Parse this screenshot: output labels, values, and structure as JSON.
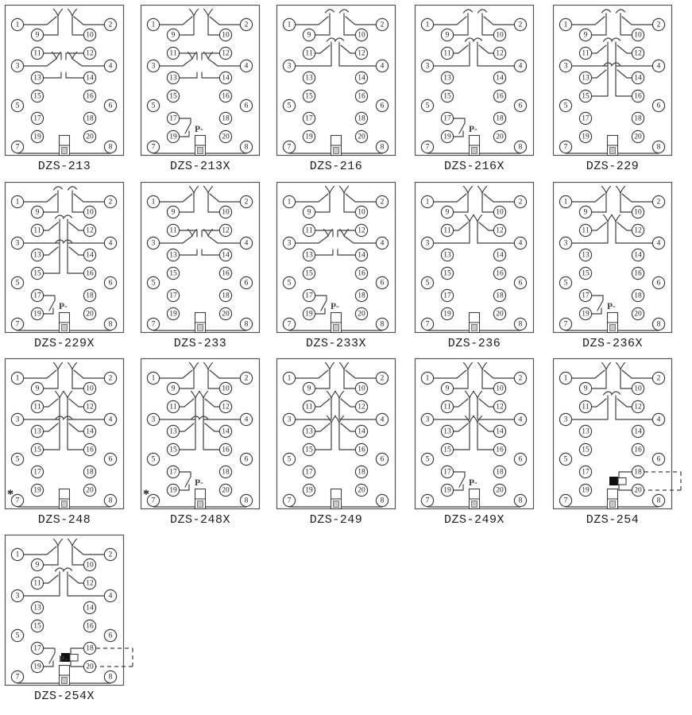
{
  "page": {
    "background": "#ffffff",
    "line_color": "#3f3f3f",
    "label_color": "#1c1c1c"
  },
  "labels": {
    "pminus": "P-",
    "asterisk": "*"
  },
  "terminals": {
    "left_outer": [
      "1",
      "3",
      "5",
      "7"
    ],
    "left_inner": [
      "9",
      "11",
      "13",
      "15",
      "17",
      "19"
    ],
    "right_inner": [
      "10",
      "12",
      "14",
      "16",
      "18",
      "20"
    ],
    "right_outer": [
      "2",
      "4",
      "6",
      "8"
    ]
  },
  "grid": {
    "col_lefts": [
      5,
      176,
      347,
      521,
      695
    ],
    "row_tops": [
      5,
      228,
      450,
      672
    ]
  },
  "relays": [
    {
      "label": "DZS-213",
      "row": 0,
      "col": 0,
      "contacts": [
        "outer-L-fork",
        "outer-R-fork",
        "triple-L",
        "triple-R"
      ]
    },
    {
      "label": "DZS-213X",
      "row": 0,
      "col": 1,
      "contacts": [
        "outer-L-fork",
        "outer-R-fork",
        "triple-L",
        "triple-R",
        "pminus"
      ]
    },
    {
      "label": "DZS-216",
      "row": 0,
      "col": 2,
      "contacts": [
        "outer-L-arc",
        "outer-R-arc",
        "inner2-L-arc",
        "inner2-R-arc"
      ]
    },
    {
      "label": "DZS-216X",
      "row": 0,
      "col": 3,
      "contacts": [
        "outer-L-arc",
        "outer-R-arc",
        "inner2-L-arc",
        "inner2-R-arc",
        "pminus"
      ]
    },
    {
      "label": "DZS-229",
      "row": 0,
      "col": 4,
      "contacts": [
        "outer-L-arc",
        "outer-R-arc",
        "inner2-L-arc",
        "inner2-R-arc",
        "inner3-L-arc",
        "inner3-R-arc"
      ]
    },
    {
      "label": "DZS-229X",
      "row": 1,
      "col": 0,
      "contacts": [
        "outer-L-arc",
        "outer-R-arc",
        "inner2-L-arc",
        "inner2-R-arc",
        "inner3-L-arc",
        "inner3-R-arc",
        "pminus"
      ]
    },
    {
      "label": "DZS-233",
      "row": 1,
      "col": 1,
      "contacts": [
        "outer-L-fork",
        "outer-R-fork",
        "triple-L",
        "triple-R"
      ]
    },
    {
      "label": "DZS-233X",
      "row": 1,
      "col": 2,
      "contacts": [
        "outer-L-fork",
        "outer-R-fork",
        "triple-L",
        "triple-R",
        "pminus"
      ]
    },
    {
      "label": "DZS-236",
      "row": 1,
      "col": 3,
      "contacts": [
        "outer-L-fork",
        "outer-R-fork",
        "inner2-L-fork",
        "inner2-R-fork"
      ]
    },
    {
      "label": "DZS-236X",
      "row": 1,
      "col": 4,
      "contacts": [
        "outer-L-fork",
        "outer-R-fork",
        "inner2-L-fork",
        "inner2-R-fork",
        "pminus"
      ]
    },
    {
      "label": "DZS-248",
      "row": 2,
      "col": 0,
      "contacts": [
        "outer-L-fork",
        "outer-R-fork",
        "inner2-L-fork",
        "inner2-R-fork",
        "inner3-L-arc",
        "inner3-R-arc",
        "asterisk"
      ]
    },
    {
      "label": "DZS-248X",
      "row": 2,
      "col": 1,
      "contacts": [
        "outer-L-fork",
        "outer-R-fork",
        "inner2-L-fork",
        "inner2-R-fork",
        "inner3-L-arc",
        "inner3-R-arc",
        "asterisk",
        "pminus"
      ]
    },
    {
      "label": "DZS-249",
      "row": 2,
      "col": 2,
      "contacts": [
        "outer-L-fork",
        "outer-R-fork",
        "inner2-L-fork",
        "inner2-R-fork",
        "inner3-L-fork",
        "inner3-R-fork"
      ]
    },
    {
      "label": "DZS-249X",
      "row": 2,
      "col": 3,
      "contacts": [
        "outer-L-fork",
        "outer-R-fork",
        "inner2-L-fork",
        "inner2-R-fork",
        "inner3-L-fork",
        "inner3-R-fork",
        "pminus"
      ]
    },
    {
      "label": "DZS-254",
      "row": 2,
      "col": 4,
      "contacts": [
        "outer-L-fork",
        "outer-R-fork",
        "inner2-L-arc",
        "inner2-R-arc",
        "link"
      ]
    },
    {
      "label": "DZS-254X",
      "row": 3,
      "col": 0,
      "contacts": [
        "outer-L-fork",
        "outer-R-fork",
        "inner2-L-arc",
        "inner2-R-arc",
        "link",
        "pminus"
      ]
    }
  ]
}
